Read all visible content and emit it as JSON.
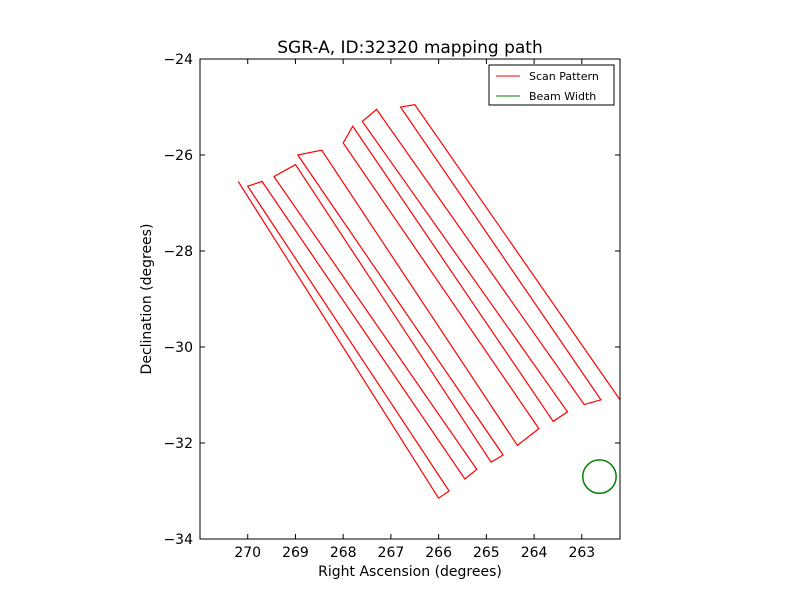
{
  "chart_data": {
    "type": "line",
    "title": "SGR-A, ID:32320 mapping path",
    "xlabel": "Right Ascension (degrees)",
    "ylabel": "Declination (degrees)",
    "xlim": [
      271.0,
      262.2
    ],
    "ylim": [
      -34,
      -24
    ],
    "x_axis_reversed": true,
    "xticks": [
      270,
      269,
      268,
      267,
      266,
      265,
      264,
      263
    ],
    "xtick_labels": [
      "270",
      "269",
      "268",
      "267",
      "266",
      "265",
      "264",
      "263"
    ],
    "yticks": [
      -24,
      -26,
      -28,
      -30,
      -32,
      -34
    ],
    "ytick_labels": [
      "−24",
      "−26",
      "−28",
      "−30",
      "−32",
      "−34"
    ],
    "grid": false,
    "legend": {
      "position": "top-right",
      "entries": [
        {
          "label": "Scan Pattern",
          "color": "#ff0000"
        },
        {
          "label": "Beam Width",
          "color": "#008000"
        }
      ]
    },
    "series": [
      {
        "name": "Scan Pattern",
        "color": "#ff0000",
        "legs": [
          {
            "start": [
              270.2,
              -26.55
            ],
            "end": [
              266.0,
              -33.15
            ]
          },
          {
            "start": [
              270.0,
              -26.65
            ],
            "end": [
              265.78,
              -33.0
            ]
          },
          {
            "start": [
              269.7,
              -26.55
            ],
            "end": [
              265.45,
              -32.75
            ]
          },
          {
            "start": [
              269.45,
              -26.45
            ],
            "end": [
              265.2,
              -32.55
            ]
          },
          {
            "start": [
              269.0,
              -26.2
            ],
            "end": [
              264.9,
              -32.4
            ]
          },
          {
            "start": [
              268.95,
              -26.0
            ],
            "end": [
              264.65,
              -32.25
            ]
          },
          {
            "start": [
              268.45,
              -25.9
            ],
            "end": [
              264.35,
              -32.05
            ]
          },
          {
            "start": [
              268.0,
              -25.75
            ],
            "end": [
              263.9,
              -31.7
            ]
          },
          {
            "start": [
              267.8,
              -25.4
            ],
            "end": [
              263.6,
              -31.55
            ]
          },
          {
            "start": [
              267.6,
              -25.3
            ],
            "end": [
              263.3,
              -31.35
            ]
          },
          {
            "start": [
              267.3,
              -25.05
            ],
            "end": [
              262.95,
              -31.2
            ]
          },
          {
            "start": [
              266.8,
              -25.0
            ],
            "end": [
              262.6,
              -31.1
            ]
          },
          {
            "start": [
              266.5,
              -24.95
            ],
            "end": [
              262.2,
              -31.1
            ]
          }
        ]
      },
      {
        "name": "Beam Width",
        "color": "#008000",
        "center": [
          262.63,
          -32.7
        ],
        "diameter_deg": 0.7
      }
    ]
  }
}
